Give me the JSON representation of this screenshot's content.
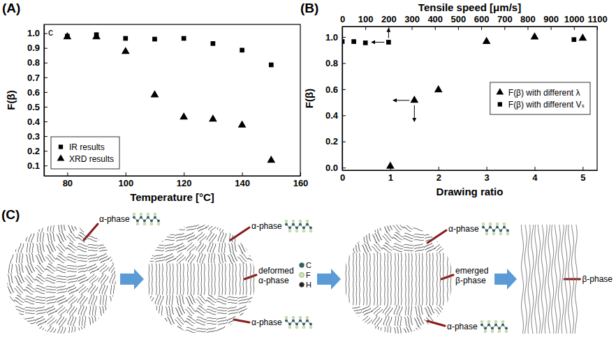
{
  "chart_data": [
    {
      "type": "scatter",
      "panel": "(A)",
      "xlabel": "Temperature [°C]",
      "ylabel": "F(β)",
      "annotations": [
        "c"
      ],
      "xlim": [
        72,
        160
      ],
      "xticks": [
        80,
        100,
        120,
        140,
        160
      ],
      "ylim": [
        0.03,
        1.06
      ],
      "yticks": [
        0.1,
        0.2,
        0.3,
        0.4,
        0.5,
        0.6,
        0.7,
        0.8,
        0.9,
        {
          "value": 1,
          "label": "1.0"
        }
      ],
      "legend": "lower left",
      "series": [
        {
          "name": "IR results",
          "color": "#000000",
          "marker": "square",
          "x": [
            80,
            90,
            100,
            110,
            120,
            130,
            140,
            150
          ],
          "values": [
            0.98,
            0.99,
            0.965,
            0.96,
            0.965,
            0.93,
            0.885,
            0.785
          ]
        },
        {
          "name": "XRD results",
          "color": "#000000",
          "marker": "triangle",
          "x": [
            80,
            90,
            100,
            110,
            120,
            130,
            140,
            150
          ],
          "values": [
            0.975,
            0.975,
            0.875,
            0.58,
            0.43,
            0.415,
            0.375,
            0.135
          ]
        }
      ]
    },
    {
      "type": "scatter",
      "panel": "(B)",
      "xlabel": "Drawing ratio",
      "x2label": "Tensile speed [μm/s]",
      "ylabel": "F(β)",
      "xlim": [
        0,
        5.3
      ],
      "xticks": [
        0,
        1,
        2,
        3,
        4,
        5
      ],
      "x2lim": [
        0,
        1100
      ],
      "x2ticks": [
        0,
        100,
        200,
        300,
        400,
        500,
        600,
        700,
        800,
        900,
        1000,
        1100
      ],
      "ylim": [
        -0.02,
        1.08
      ],
      "yticks": [
        {
          "value": 0,
          "label": "0.0"
        },
        0.2,
        0.4,
        0.6,
        0.8,
        {
          "value": 1,
          "label": "1.0"
        }
      ],
      "legend": "right",
      "series": [
        {
          "name": "F(β) with different λ",
          "color": "#000000",
          "marker": "triangle",
          "x": [
            1,
            1.5,
            2,
            3,
            4,
            5
          ],
          "values": [
            0.01,
            0.515,
            0.595,
            0.965,
            1.0,
            0.99
          ]
        },
        {
          "name": "F(β) with different Vₛ",
          "color": "#000000",
          "marker": "square",
          "axis": "x2",
          "x": [
            0,
            50,
            100,
            200,
            1000
          ],
          "values": [
            0.965,
            0.965,
            0.955,
            0.96,
            0.98
          ]
        }
      ]
    }
  ],
  "diagram": {
    "label": "(C)",
    "stages": [
      {
        "labels": [
          "α-phase"
        ]
      },
      {
        "labels": [
          "α-phase",
          "deformed α-phase",
          "α-phase"
        ]
      },
      {
        "labels": [
          "α-phase",
          "emerged β-phase",
          "α-phase"
        ]
      },
      {
        "labels": [
          "β-phase"
        ]
      }
    ],
    "atom_legend": [
      "C",
      "F",
      "H"
    ]
  }
}
